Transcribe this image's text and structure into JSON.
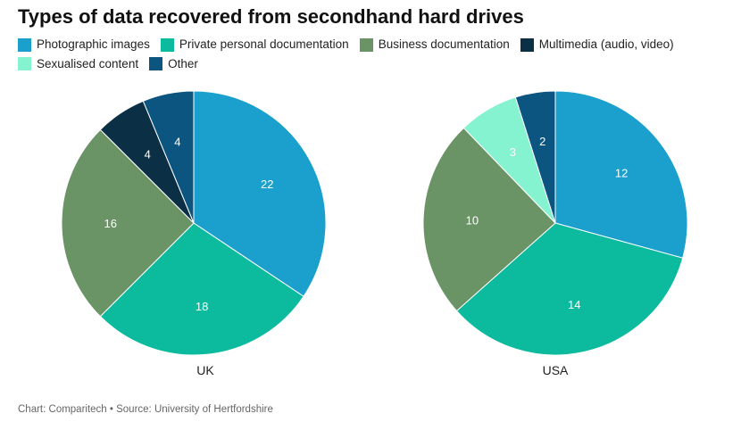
{
  "chart_data": {
    "type": "pie",
    "title": "Types of data recovered from secondhand hard drives",
    "legend": [
      {
        "name": "Photographic images",
        "color": "#1ba0cd"
      },
      {
        "name": "Private personal documentation",
        "color": "#0cbb9e"
      },
      {
        "name": "Business documentation",
        "color": "#6b9466"
      },
      {
        "name": "Multimedia (audio, video)",
        "color": "#0b2f45"
      },
      {
        "name": "Sexualised content",
        "color": "#85f2d0"
      },
      {
        "name": "Other",
        "color": "#0b5580"
      }
    ],
    "pies": [
      {
        "label": "UK",
        "slices": [
          {
            "name": "Photographic images",
            "value": 22
          },
          {
            "name": "Private personal documentation",
            "value": 18
          },
          {
            "name": "Business documentation",
            "value": 16
          },
          {
            "name": "Multimedia (audio, video)",
            "value": 4
          },
          {
            "name": "Other",
            "value": 4
          }
        ]
      },
      {
        "label": "USA",
        "slices": [
          {
            "name": "Photographic images",
            "value": 12
          },
          {
            "name": "Private personal documentation",
            "value": 14
          },
          {
            "name": "Business documentation",
            "value": 10
          },
          {
            "name": "Sexualised content",
            "value": 3
          },
          {
            "name": "Other",
            "value": 2
          }
        ]
      }
    ]
  },
  "footer": "Chart: Comparitech • Source: University of Hertfordshire"
}
